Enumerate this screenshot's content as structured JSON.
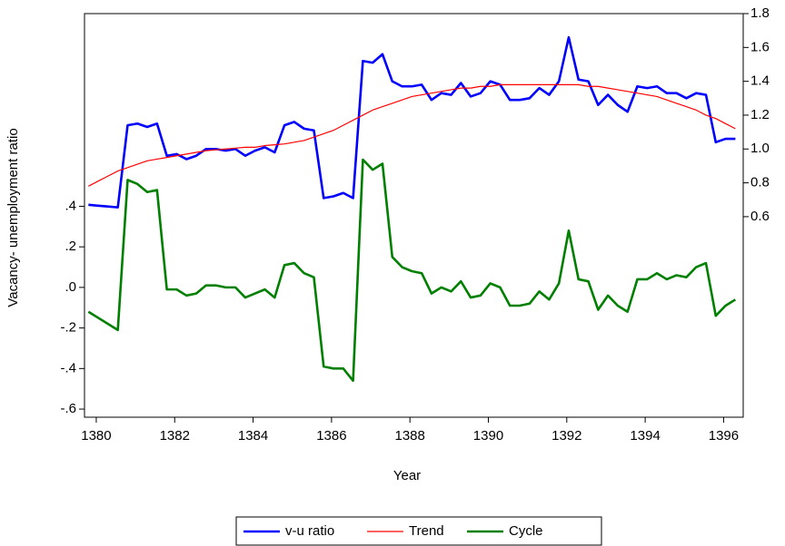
{
  "chart_data": {
    "type": "line",
    "x_label": "Year",
    "y_label": "Vacancy- unemployment ratio",
    "x": [
      1379.8,
      1380.05,
      1380.3,
      1380.55,
      1380.8,
      1381.05,
      1381.3,
      1381.55,
      1381.8,
      1382.05,
      1382.3,
      1382.55,
      1382.8,
      1383.05,
      1383.3,
      1383.55,
      1383.8,
      1384.05,
      1384.3,
      1384.55,
      1384.8,
      1385.05,
      1385.3,
      1385.55,
      1385.8,
      1386.05,
      1386.3,
      1386.55,
      1386.8,
      1387.05,
      1387.3,
      1387.55,
      1387.8,
      1388.05,
      1388.3,
      1388.55,
      1388.8,
      1389.05,
      1389.3,
      1389.55,
      1389.8,
      1390.05,
      1390.3,
      1390.55,
      1390.8,
      1391.05,
      1391.3,
      1391.55,
      1391.8,
      1392.05,
      1392.3,
      1392.55,
      1392.8,
      1393.05,
      1393.3,
      1393.55,
      1393.8,
      1394.05,
      1394.3,
      1394.55,
      1394.8,
      1395.05,
      1395.3,
      1395.55,
      1395.8,
      1396.05,
      1396.3
    ],
    "xlim": [
      1379.7,
      1396.5
    ],
    "xticks": [
      1380,
      1382,
      1384,
      1386,
      1388,
      1390,
      1392,
      1394,
      1396
    ],
    "ylim": [
      -0.64,
      1.35
    ],
    "yticks": [
      {
        "value": -0.6,
        "label": "-.6"
      },
      {
        "value": -0.4,
        "label": "-.4"
      },
      {
        "value": -0.2,
        "label": "-.2"
      },
      {
        "value": 0,
        "label": ".0"
      },
      {
        "value": 0.2,
        "label": ".2"
      },
      {
        "value": 0.4,
        "label": ".4"
      }
    ],
    "y2lim": [
      -0.585,
      1.8
    ],
    "y2ticks": [
      0.6,
      0.8,
      {
        "value": 1.0,
        "label": "1.0"
      },
      1.2,
      1.4,
      1.6,
      1.8
    ],
    "series": [
      {
        "name": "v-u ratio",
        "color": "#0000ff",
        "axis": "y2",
        "values": [
          0.67,
          0.665,
          0.66,
          0.655,
          1.14,
          1.15,
          1.13,
          1.15,
          0.96,
          0.97,
          0.94,
          0.96,
          1.0,
          1.0,
          0.99,
          1.0,
          0.96,
          0.99,
          1.01,
          0.98,
          1.14,
          1.16,
          1.12,
          1.11,
          0.71,
          0.72,
          0.74,
          0.71,
          1.52,
          1.51,
          1.56,
          1.4,
          1.37,
          1.37,
          1.38,
          1.29,
          1.33,
          1.32,
          1.39,
          1.31,
          1.33,
          1.4,
          1.38,
          1.29,
          1.29,
          1.3,
          1.36,
          1.32,
          1.4,
          1.66,
          1.41,
          1.4,
          1.26,
          1.32,
          1.26,
          1.22,
          1.37,
          1.36,
          1.37,
          1.33,
          1.33,
          1.3,
          1.33,
          1.32,
          1.04,
          1.06,
          1.06
        ]
      },
      {
        "name": "Trend",
        "color": "#ff0000",
        "axis": "y2",
        "values": [
          0.78,
          0.81,
          0.84,
          0.87,
          0.89,
          0.91,
          0.93,
          0.94,
          0.95,
          0.96,
          0.97,
          0.98,
          0.99,
          0.995,
          1.0,
          1.005,
          1.01,
          1.01,
          1.02,
          1.025,
          1.03,
          1.04,
          1.05,
          1.07,
          1.09,
          1.11,
          1.14,
          1.17,
          1.2,
          1.23,
          1.25,
          1.27,
          1.29,
          1.31,
          1.32,
          1.33,
          1.34,
          1.35,
          1.36,
          1.36,
          1.37,
          1.37,
          1.38,
          1.38,
          1.38,
          1.38,
          1.38,
          1.38,
          1.38,
          1.38,
          1.38,
          1.37,
          1.37,
          1.36,
          1.35,
          1.34,
          1.33,
          1.32,
          1.31,
          1.29,
          1.27,
          1.25,
          1.23,
          1.2,
          1.18,
          1.15,
          1.12
        ]
      },
      {
        "name": "Cycle",
        "color": "#008000",
        "values": [
          -0.12,
          -0.15,
          -0.18,
          -0.21,
          0.53,
          0.51,
          0.47,
          0.48,
          -0.01,
          -0.01,
          -0.04,
          -0.03,
          0.01,
          0.01,
          0.0,
          0.0,
          -0.05,
          -0.03,
          -0.01,
          -0.05,
          0.11,
          0.12,
          0.07,
          0.05,
          -0.39,
          -0.4,
          -0.4,
          -0.46,
          0.63,
          0.58,
          0.61,
          0.15,
          0.1,
          0.08,
          0.07,
          -0.03,
          0.0,
          -0.02,
          0.03,
          -0.05,
          -0.04,
          0.02,
          0.0,
          -0.09,
          -0.09,
          -0.08,
          -0.02,
          -0.06,
          0.02,
          0.28,
          0.04,
          0.03,
          -0.11,
          -0.04,
          -0.09,
          -0.12,
          0.04,
          0.04,
          0.07,
          0.04,
          0.06,
          0.05,
          0.1,
          0.12,
          -0.14,
          -0.09,
          -0.06
        ]
      }
    ]
  }
}
